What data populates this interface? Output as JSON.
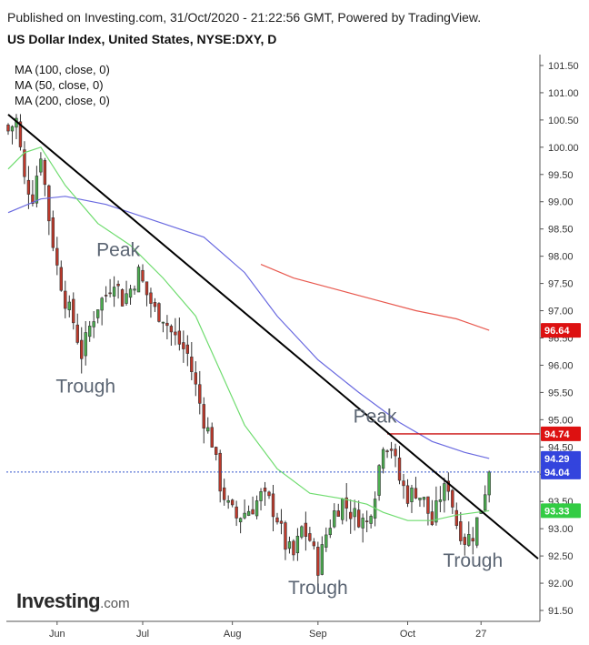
{
  "header": {
    "published": "Published on Investing.com, 31/Oct/2020 - 21:22:56 GMT, Powered by TradingView.",
    "title": "US Dollar Index, United States, NYSE:DXY, D"
  },
  "legend": {
    "ma100": "MA (100, close, 0)",
    "ma50": "MA (50, close, 0)",
    "ma200": "MA (200, close, 0)"
  },
  "logo": {
    "main": "Investing",
    "suffix": ".com"
  },
  "colors": {
    "up": "#4caf50",
    "down": "#c0392b",
    "ma100": "#6a6ae0",
    "ma50": "#6fdc6f",
    "ma200": "#e8594f",
    "resistance": "#cc1111",
    "trendline": "#000000",
    "last_price_line": "#3355cc"
  },
  "chart_data": {
    "type": "candlestick",
    "title": "US Dollar Index, United States, NYSE:DXY, D",
    "ylim": [
      91.3,
      101.7
    ],
    "y_ticks": [
      101.5,
      101.0,
      100.5,
      100.0,
      99.5,
      99.0,
      98.5,
      98.0,
      97.5,
      97.0,
      96.5,
      96.0,
      95.5,
      95.0,
      94.5,
      94.0,
      93.5,
      93.0,
      92.5,
      92.0,
      91.5
    ],
    "y_tick_labels": [
      "101.50",
      "101.00",
      "100.50",
      "100.00",
      "99.50",
      "99.00",
      "98.50",
      "98.00",
      "97.50",
      "97.00",
      "96.50",
      "96.00",
      "95.50",
      "95.00",
      "94.50",
      "94.00",
      "93.50",
      "93.00",
      "92.50",
      "92.00",
      "91.50"
    ],
    "x_ticks": [
      {
        "label": "Jun",
        "index": 12
      },
      {
        "label": "Jul",
        "index": 33
      },
      {
        "label": "Aug",
        "index": 55
      },
      {
        "label": "Sep",
        "index": 76
      },
      {
        "label": "Oct",
        "index": 98
      },
      {
        "label": "27",
        "index": 116
      }
    ],
    "close_path_points": [
      [
        0,
        100.3
      ],
      [
        2,
        100.5
      ],
      [
        4,
        99.4
      ],
      [
        6,
        99.1
      ],
      [
        8,
        99.9
      ],
      [
        10,
        98.7
      ],
      [
        12,
        97.8
      ],
      [
        14,
        97.2
      ],
      [
        16,
        96.8
      ],
      [
        18,
        96.2
      ],
      [
        20,
        96.7
      ],
      [
        22,
        97.1
      ],
      [
        24,
        97.3
      ],
      [
        26,
        97.6
      ],
      [
        28,
        97.2
      ],
      [
        30,
        97.4
      ],
      [
        32,
        97.7
      ],
      [
        34,
        97.3
      ],
      [
        36,
        97.0
      ],
      [
        38,
        96.9
      ],
      [
        40,
        96.6
      ],
      [
        42,
        96.4
      ],
      [
        44,
        96.2
      ],
      [
        46,
        95.6
      ],
      [
        48,
        95.0
      ],
      [
        50,
        94.6
      ],
      [
        52,
        93.8
      ],
      [
        54,
        93.4
      ],
      [
        56,
        93.2
      ],
      [
        58,
        93.3
      ],
      [
        60,
        93.4
      ],
      [
        62,
        93.6
      ],
      [
        64,
        93.5
      ],
      [
        66,
        93.2
      ],
      [
        68,
        92.7
      ],
      [
        70,
        92.5
      ],
      [
        72,
        93.0
      ],
      [
        74,
        92.8
      ],
      [
        76,
        92.3
      ],
      [
        78,
        92.9
      ],
      [
        80,
        93.3
      ],
      [
        82,
        93.5
      ],
      [
        84,
        93.3
      ],
      [
        86,
        93.2
      ],
      [
        88,
        93.1
      ],
      [
        90,
        93.7
      ],
      [
        92,
        94.6
      ],
      [
        94,
        94.5
      ],
      [
        96,
        93.9
      ],
      [
        98,
        93.6
      ],
      [
        100,
        93.7
      ],
      [
        102,
        93.5
      ],
      [
        104,
        93.1
      ],
      [
        106,
        93.6
      ],
      [
        108,
        93.8
      ],
      [
        110,
        93.1
      ],
      [
        112,
        92.8
      ],
      [
        114,
        92.9
      ],
      [
        116,
        93.4
      ],
      [
        118,
        94.04
      ]
    ],
    "series": [
      {
        "name": "MA (100, close, 0)",
        "value_last": 94.29,
        "points": [
          [
            0,
            98.8
          ],
          [
            8,
            99.05
          ],
          [
            14,
            99.1
          ],
          [
            24,
            98.95
          ],
          [
            36,
            98.65
          ],
          [
            48,
            98.35
          ],
          [
            58,
            97.7
          ],
          [
            66,
            96.9
          ],
          [
            76,
            96.1
          ],
          [
            86,
            95.5
          ],
          [
            96,
            94.95
          ],
          [
            104,
            94.6
          ],
          [
            112,
            94.4
          ],
          [
            118,
            94.29
          ]
        ]
      },
      {
        "name": "MA (50, close, 0)",
        "value_last": 93.33,
        "points": [
          [
            0,
            99.6
          ],
          [
            4,
            99.9
          ],
          [
            8,
            100.0
          ],
          [
            14,
            99.3
          ],
          [
            22,
            98.6
          ],
          [
            30,
            98.2
          ],
          [
            38,
            97.6
          ],
          [
            46,
            96.9
          ],
          [
            52,
            95.9
          ],
          [
            58,
            94.9
          ],
          [
            66,
            94.1
          ],
          [
            74,
            93.65
          ],
          [
            82,
            93.55
          ],
          [
            88,
            93.45
          ],
          [
            92,
            93.3
          ],
          [
            98,
            93.15
          ],
          [
            104,
            93.15
          ],
          [
            110,
            93.25
          ],
          [
            118,
            93.33
          ]
        ]
      },
      {
        "name": "MA (200, close, 0)",
        "value_last": 96.64,
        "points": [
          [
            62,
            97.85
          ],
          [
            70,
            97.6
          ],
          [
            80,
            97.4
          ],
          [
            90,
            97.2
          ],
          [
            100,
            97.0
          ],
          [
            110,
            96.85
          ],
          [
            118,
            96.64
          ]
        ]
      }
    ],
    "trendline": {
      "start": [
        0,
        100.6
      ],
      "end": [
        130,
        92.45
      ]
    },
    "resistance": {
      "value": 94.74,
      "start_index": 93
    },
    "badges": [
      {
        "label": "96.64",
        "value": 96.64,
        "color": "#dd1111"
      },
      {
        "label": "94.74",
        "value": 94.74,
        "color": "#dd1111"
      },
      {
        "label": "94.29",
        "value": 94.29,
        "color": "#3344dd"
      },
      {
        "label": "94.04",
        "value": 94.04,
        "color": "#3344dd"
      },
      {
        "label": "93.33",
        "value": 93.33,
        "color": "#33cc44"
      }
    ],
    "annotations": [
      {
        "text": "Peak",
        "index": 27,
        "value": 98.0
      },
      {
        "text": "Trough",
        "index": 19,
        "value": 95.5
      },
      {
        "text": "Peak",
        "index": 90,
        "value": 94.95
      },
      {
        "text": "Trough",
        "index": 76,
        "value": 91.8
      },
      {
        "text": "Trough",
        "index": 114,
        "value": 92.3
      }
    ]
  }
}
